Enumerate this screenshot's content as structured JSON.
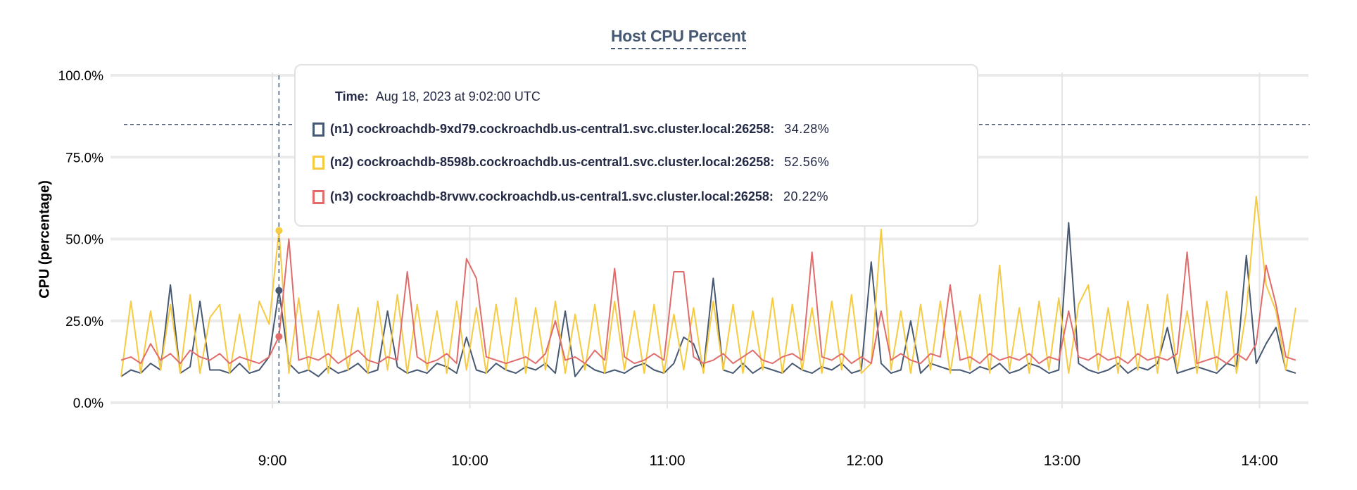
{
  "chart_data": {
    "type": "line",
    "title": "Host CPU Percent",
    "ylabel": "CPU (percentage)",
    "xlabel": "",
    "ylim": [
      0,
      100
    ],
    "xlim": [
      "8:14",
      "14:11"
    ],
    "y_ticks": [
      "0.0%",
      "25.0%",
      "50.0%",
      "75.0%",
      "100.0%"
    ],
    "y_tick_values": [
      0,
      25,
      50,
      75,
      100
    ],
    "x_ticks": [
      "9:00",
      "10:00",
      "11:00",
      "12:00",
      "13:00",
      "14:00"
    ],
    "grid": true,
    "threshold": 85,
    "hover_time": "9:02",
    "x": [
      "8:14",
      "8:17",
      "8:20",
      "8:23",
      "8:26",
      "8:29",
      "8:32",
      "8:35",
      "8:38",
      "8:41",
      "8:44",
      "8:47",
      "8:50",
      "8:53",
      "8:56",
      "8:59",
      "9:02",
      "9:05",
      "9:08",
      "9:11",
      "9:14",
      "9:17",
      "9:20",
      "9:23",
      "9:26",
      "9:29",
      "9:32",
      "9:35",
      "9:38",
      "9:41",
      "9:44",
      "9:47",
      "9:50",
      "9:53",
      "9:56",
      "9:59",
      "10:02",
      "10:05",
      "10:08",
      "10:11",
      "10:14",
      "10:17",
      "10:20",
      "10:23",
      "10:26",
      "10:29",
      "10:32",
      "10:35",
      "10:38",
      "10:41",
      "10:44",
      "10:47",
      "10:50",
      "10:53",
      "10:56",
      "10:59",
      "11:02",
      "11:05",
      "11:08",
      "11:11",
      "11:14",
      "11:17",
      "11:20",
      "11:23",
      "11:26",
      "11:29",
      "11:32",
      "11:35",
      "11:38",
      "11:41",
      "11:44",
      "11:47",
      "11:50",
      "11:53",
      "11:56",
      "11:59",
      "12:02",
      "12:05",
      "12:08",
      "12:11",
      "12:14",
      "12:17",
      "12:20",
      "12:23",
      "12:26",
      "12:29",
      "12:32",
      "12:35",
      "12:38",
      "12:41",
      "12:44",
      "12:47",
      "12:50",
      "12:53",
      "12:56",
      "12:59",
      "13:02",
      "13:05",
      "13:08",
      "13:11",
      "13:14",
      "13:17",
      "13:20",
      "13:23",
      "13:26",
      "13:29",
      "13:32",
      "13:35",
      "13:38",
      "13:41",
      "13:44",
      "13:47",
      "13:50",
      "13:53",
      "13:56",
      "13:59",
      "14:02",
      "14:05",
      "14:08",
      "14:11"
    ],
    "series": [
      {
        "name": "(n1) cockroachdb-9xd79.cockroachdb.us-central1.svc.cluster.local:26258",
        "color": "#475872",
        "values": [
          8,
          10,
          9,
          12,
          10,
          36,
          9,
          11,
          31,
          10,
          10,
          9,
          12,
          9,
          10,
          14,
          34.28,
          12,
          9,
          10,
          8,
          11,
          9,
          10,
          12,
          9,
          10,
          28,
          11,
          9,
          10,
          9,
          12,
          11,
          9,
          20,
          10,
          9,
          12,
          10,
          9,
          11,
          10,
          12,
          9,
          28,
          8,
          12,
          10,
          9,
          10,
          9,
          11,
          12,
          10,
          9,
          12,
          20,
          18,
          10,
          38,
          10,
          9,
          12,
          9,
          11,
          10,
          9,
          12,
          10,
          9,
          11,
          10,
          12,
          9,
          10,
          43,
          12,
          9,
          10,
          25,
          9,
          12,
          11,
          10,
          10,
          9,
          11,
          10,
          12,
          9,
          10,
          12,
          11,
          9,
          10,
          55,
          12,
          10,
          9,
          10,
          12,
          9,
          11,
          10,
          12,
          23,
          9,
          10,
          11,
          10,
          9,
          12,
          11,
          45,
          12,
          18,
          23,
          10,
          9
        ]
      },
      {
        "name": "(n2) cockroachdb-8598b.cockroachdb.us-central1.svc.cluster.local:26258",
        "color": "#f6cb42",
        "values": [
          8,
          31,
          9,
          28,
          10,
          30,
          9,
          33,
          9,
          26,
          30,
          9,
          27,
          10,
          31,
          24,
          52.56,
          9,
          32,
          10,
          28,
          9,
          30,
          10,
          29,
          9,
          31,
          10,
          33,
          9,
          30,
          10,
          28,
          9,
          31,
          10,
          29,
          9,
          30,
          10,
          32,
          9,
          29,
          10,
          31,
          9,
          27,
          10,
          30,
          9,
          31,
          10,
          28,
          9,
          30,
          9,
          27,
          10,
          29,
          9,
          31,
          10,
          30,
          9,
          28,
          10,
          32,
          9,
          30,
          10,
          29,
          9,
          31,
          10,
          33,
          9,
          12,
          53,
          10,
          28,
          9,
          30,
          10,
          31,
          9,
          28,
          10,
          33,
          9,
          42,
          10,
          29,
          9,
          31,
          10,
          32,
          9,
          30,
          36,
          10,
          29,
          9,
          31,
          10,
          30,
          9,
          33,
          10,
          28,
          9,
          31,
          10,
          34,
          9,
          28,
          63,
          36,
          28,
          10,
          29
        ]
      },
      {
        "name": "(n3) cockroachdb-8rvwv.cockroachdb.us-central1.svc.cluster.local:26258",
        "color": "#e06c6c",
        "values": [
          13,
          14,
          12,
          18,
          13,
          15,
          12,
          16,
          14,
          13,
          15,
          12,
          14,
          13,
          12,
          14,
          20.22,
          50,
          13,
          14,
          13,
          15,
          12,
          14,
          16,
          13,
          12,
          14,
          13,
          40,
          14,
          12,
          13,
          15,
          12,
          44,
          38,
          14,
          13,
          12,
          13,
          14,
          12,
          15,
          25,
          13,
          14,
          12,
          16,
          13,
          41,
          14,
          12,
          13,
          15,
          13,
          40,
          40,
          14,
          12,
          13,
          15,
          12,
          14,
          16,
          13,
          12,
          14,
          15,
          13,
          46,
          14,
          13,
          15,
          12,
          14,
          12,
          28,
          13,
          15,
          13,
          12,
          15,
          14,
          36,
          13,
          14,
          12,
          15,
          13,
          14,
          13,
          15,
          12,
          14,
          13,
          28,
          14,
          13,
          15,
          13,
          14,
          12,
          15,
          13,
          14,
          13,
          15,
          46,
          12,
          13,
          14,
          12,
          15,
          13,
          18,
          42,
          30,
          14,
          13
        ]
      }
    ]
  },
  "tooltip": {
    "time_label": "Time:",
    "time_value": "Aug 18, 2023 at 9:02:00 UTC",
    "rows": [
      {
        "label": "(n1) cockroachdb-9xd79.cockroachdb.us-central1.svc.cluster.local:26258:",
        "value": "34.28%",
        "color": "#475872"
      },
      {
        "label": "(n2) cockroachdb-8598b.cockroachdb.us-central1.svc.cluster.local:26258:",
        "value": "52.56%",
        "color": "#f6cb42"
      },
      {
        "label": "(n3) cockroachdb-8rvwv.cockroachdb.us-central1.svc.cluster.local:26258:",
        "value": "20.22%",
        "color": "#e06c6c"
      }
    ]
  }
}
